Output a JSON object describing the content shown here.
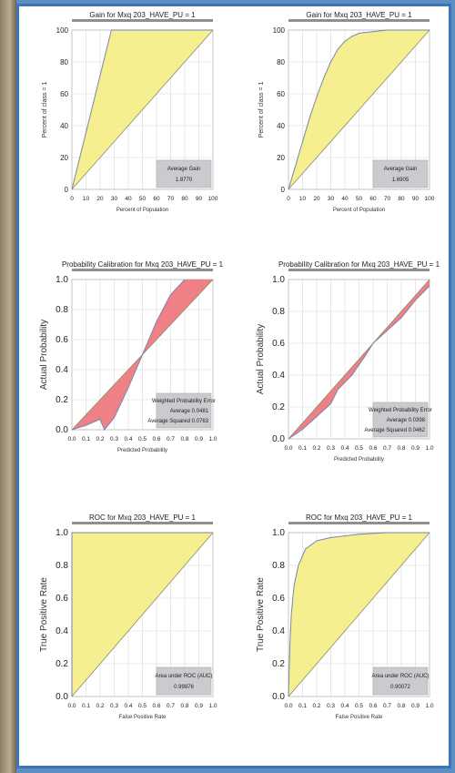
{
  "colors": {
    "fill_gain_roc": "#f4ee8a",
    "fill_calibration": "#ee7a80",
    "curve_line": "#7a86a8",
    "frame_top": "#8f8f8f",
    "page_border": "#3e74b8"
  },
  "chart_data": [
    {
      "id": "gain_left",
      "type": "area",
      "title": "Gain for Mxq 203_HAVE_PU = 1",
      "xlabel": "Percent of Population",
      "ylabel": "Percent of class = 1",
      "xlim": [
        0,
        100
      ],
      "ylim": [
        0,
        100
      ],
      "x_ticks": [
        "0",
        "10",
        "20",
        "30",
        "40",
        "50",
        "60",
        "70",
        "80",
        "90",
        "100"
      ],
      "y_ticks": [
        "0",
        "20",
        "40",
        "60",
        "80",
        "100"
      ],
      "grid": true,
      "series": [
        {
          "values": [
            [
              0,
              0
            ],
            [
              28,
              100
            ],
            [
              100,
              100
            ]
          ]
        },
        {
          "values": [
            [
              0,
              0
            ],
            [
              100,
              100
            ]
          ]
        }
      ],
      "info": {
        "label": "Average Gain",
        "value": "1.8770"
      }
    },
    {
      "id": "gain_right",
      "type": "area",
      "title": "Gain for Mxq 203_HAVE_PU = 1",
      "xlabel": "Percent of Population",
      "ylabel": "Percent of class = 1",
      "xlim": [
        0,
        100
      ],
      "ylim": [
        0,
        100
      ],
      "x_ticks": [
        "0",
        "10",
        "20",
        "30",
        "40",
        "50",
        "60",
        "70",
        "80",
        "90",
        "100"
      ],
      "y_ticks": [
        "0",
        "20",
        "40",
        "60",
        "80",
        "100"
      ],
      "grid": true,
      "series": [
        {
          "values": [
            [
              0,
              0
            ],
            [
              5,
              15
            ],
            [
              10,
              30
            ],
            [
              15,
              45
            ],
            [
              20,
              58
            ],
            [
              25,
              70
            ],
            [
              30,
              80
            ],
            [
              35,
              88
            ],
            [
              40,
              93
            ],
            [
              45,
              96
            ],
            [
              50,
              98
            ],
            [
              60,
              99
            ],
            [
              70,
              100
            ],
            [
              100,
              100
            ]
          ]
        },
        {
          "values": [
            [
              0,
              0
            ],
            [
              100,
              100
            ]
          ]
        }
      ],
      "info": {
        "label": "Average Gain",
        "value": "1.6905"
      }
    },
    {
      "id": "calib_left",
      "type": "area",
      "title": "Probability Calibration for Mxq 203_HAVE_PU = 1",
      "xlabel": "Predicted Probability",
      "ylabel": "Actual Probability",
      "xlim": [
        0,
        1
      ],
      "ylim": [
        0,
        1
      ],
      "x_ticks": [
        "0.0",
        "0.1",
        "0.2",
        "0.3",
        "0.4",
        "0.5",
        "0.6",
        "0.7",
        "0.8",
        "0.9",
        "1.0"
      ],
      "y_ticks": [
        "0.0",
        "0.2",
        "0.4",
        "0.6",
        "0.8",
        "1.0"
      ],
      "grid": true,
      "series": [
        {
          "values": [
            [
              0,
              0
            ],
            [
              0.1,
              0.03
            ],
            [
              0.2,
              0.07
            ],
            [
              0.23,
              0.0
            ],
            [
              0.3,
              0.08
            ],
            [
              0.4,
              0.28
            ],
            [
              0.5,
              0.5
            ],
            [
              0.6,
              0.72
            ],
            [
              0.7,
              0.9
            ],
            [
              0.8,
              1.0
            ]
          ]
        },
        {
          "values": [
            [
              0,
              0
            ],
            [
              1,
              1
            ]
          ]
        }
      ],
      "info": {
        "label": "Weighted Probability Error",
        "line1": "Average 0.0481",
        "line2": "Average Squared 0.0763"
      }
    },
    {
      "id": "calib_right",
      "type": "area",
      "title": "Probability Calibration for Mxq 203_HAVE_PU = 1",
      "xlabel": "Predicted Probability",
      "ylabel": "Actual Probability",
      "xlim": [
        0,
        1
      ],
      "ylim": [
        0,
        1
      ],
      "x_ticks": [
        "0.0",
        "0.1",
        "0.2",
        "0.3",
        "0.4",
        "0.5",
        "0.6",
        "0.7",
        "0.8",
        "0.9",
        "1.0"
      ],
      "y_ticks": [
        "0.0",
        "0.2",
        "0.4",
        "0.6",
        "0.8",
        "1.0"
      ],
      "grid": true,
      "series": [
        {
          "values": [
            [
              0,
              0
            ],
            [
              0.05,
              0.03
            ],
            [
              0.1,
              0.06
            ],
            [
              0.2,
              0.14
            ],
            [
              0.3,
              0.22
            ],
            [
              0.35,
              0.31
            ],
            [
              0.45,
              0.4
            ],
            [
              0.55,
              0.53
            ],
            [
              0.6,
              0.6
            ],
            [
              0.7,
              0.68
            ],
            [
              0.8,
              0.76
            ],
            [
              0.9,
              0.87
            ],
            [
              1.0,
              0.96
            ]
          ]
        },
        {
          "values": [
            [
              0,
              0
            ],
            [
              1,
              1
            ]
          ]
        }
      ],
      "info": {
        "label": "Weighted Probability Error",
        "line1": "Average 0.0398",
        "line2": "Average Squared 0.0462"
      }
    },
    {
      "id": "roc_left",
      "type": "area",
      "title": "ROC for Mxq 203_HAVE_PU = 1",
      "xlabel": "False Positive Rate",
      "ylabel": "True Positive Rate",
      "xlim": [
        0,
        1
      ],
      "ylim": [
        0,
        1
      ],
      "x_ticks": [
        "0.0",
        "0.1",
        "0.2",
        "0.3",
        "0.4",
        "0.5",
        "0.6",
        "0.7",
        "0.8",
        "0.9",
        "1.0"
      ],
      "y_ticks": [
        "0.0",
        "0.2",
        "0.4",
        "0.6",
        "0.8",
        "1.0"
      ],
      "grid": true,
      "series": [
        {
          "values": [
            [
              0,
              0
            ],
            [
              0,
              1
            ],
            [
              1,
              1
            ]
          ]
        },
        {
          "values": [
            [
              0,
              0
            ],
            [
              1,
              1
            ]
          ]
        }
      ],
      "info": {
        "label": "Area under ROC (AUC)",
        "value": "0.99876"
      }
    },
    {
      "id": "roc_right",
      "type": "area",
      "title": "ROC for Mxq 203_HAVE_PU = 1",
      "xlabel": "False Positive Rate",
      "ylabel": "True Positive Rate",
      "xlim": [
        0,
        1
      ],
      "ylim": [
        0,
        1
      ],
      "x_ticks": [
        "0.0",
        "0.1",
        "0.2",
        "0.3",
        "0.4",
        "0.5",
        "0.6",
        "0.7",
        "0.8",
        "0.9",
        "1.0"
      ],
      "y_ticks": [
        "0.0",
        "0.2",
        "0.4",
        "0.6",
        "0.8",
        "1.0"
      ],
      "grid": true,
      "series": [
        {
          "values": [
            [
              0,
              0
            ],
            [
              0.01,
              0.3
            ],
            [
              0.02,
              0.5
            ],
            [
              0.04,
              0.68
            ],
            [
              0.07,
              0.8
            ],
            [
              0.12,
              0.9
            ],
            [
              0.2,
              0.95
            ],
            [
              0.3,
              0.97
            ],
            [
              0.5,
              0.99
            ],
            [
              0.7,
              1.0
            ],
            [
              1.0,
              1.0
            ]
          ]
        },
        {
          "values": [
            [
              0,
              0
            ],
            [
              1,
              1
            ]
          ]
        }
      ],
      "info": {
        "label": "Area under ROC (AUC)",
        "value": "0.90072"
      }
    }
  ]
}
